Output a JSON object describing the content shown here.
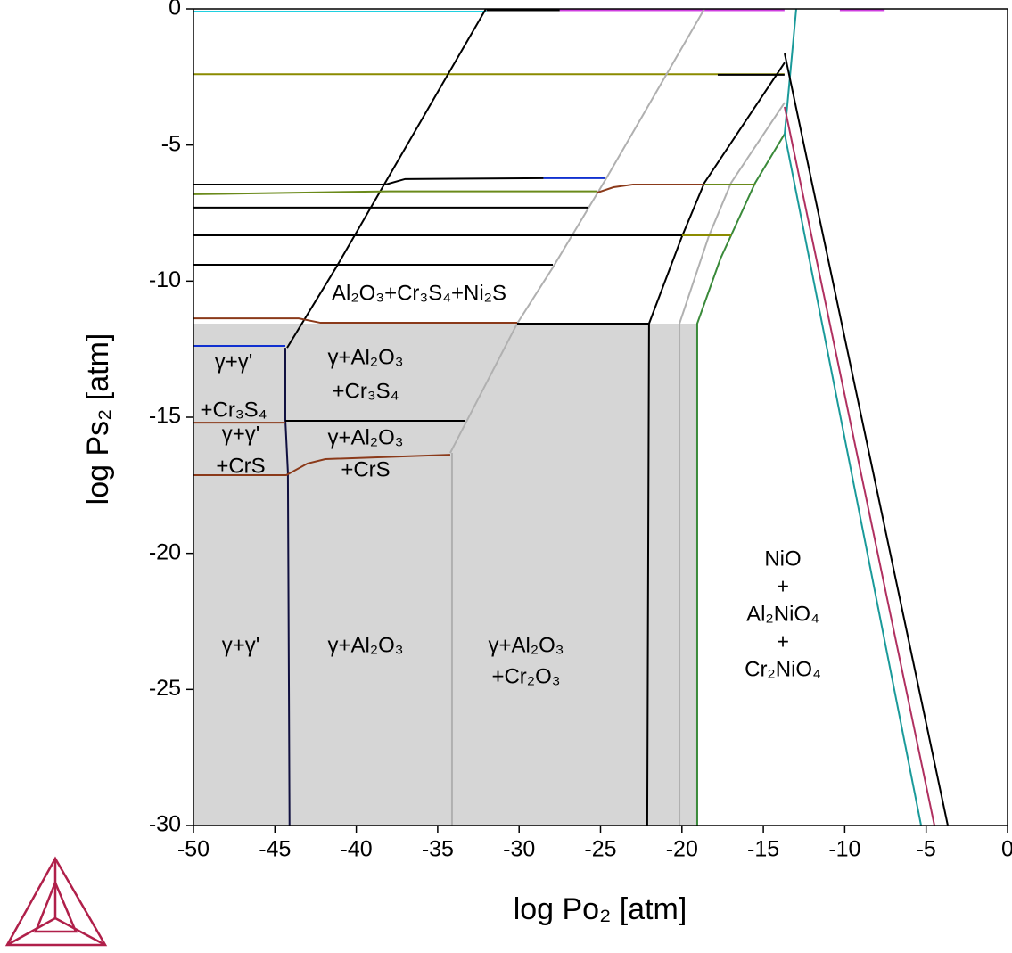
{
  "chart_data": {
    "type": "phase-diagram",
    "xlabel": "log Po₂ [atm]",
    "ylabel": "log Ps₂ [atm]",
    "xlim": [
      -50,
      0
    ],
    "ylim": [
      -30,
      0
    ],
    "xticks": [
      -50,
      -45,
      -40,
      -35,
      -30,
      -25,
      -20,
      -15,
      -10,
      -5,
      0
    ],
    "yticks": [
      -30,
      -25,
      -20,
      -15,
      -10,
      -5,
      0
    ],
    "regions": [
      {
        "color": "#d6d6d6",
        "x": [
          -50,
          -19.06,
          -19.06,
          -50
        ],
        "y": [
          -11.56,
          -11.56,
          -30,
          -30
        ]
      }
    ],
    "lines": [
      {
        "color": "#20d0e0",
        "x": [
          -50,
          -32.0
        ],
        "y": [
          -0.1,
          -0.1
        ]
      },
      {
        "color": "#000000",
        "x": [
          -32.0,
          -27.5
        ],
        "y": [
          -0.05,
          -0.05
        ]
      },
      {
        "color": "#d040e0",
        "x": [
          -27.5,
          -13.7
        ],
        "y": [
          -0.05,
          -0.05
        ]
      },
      {
        "color": "#d040e0",
        "x": [
          -10.3,
          -7.55
        ],
        "y": [
          -0.05,
          -0.05
        ]
      },
      {
        "color": "#8b8b00",
        "x": [
          -50,
          -13.7
        ],
        "y": [
          -2.4,
          -2.4
        ]
      },
      {
        "color": "#000000",
        "x": [
          -17.8,
          -13.7
        ],
        "y": [
          -2.42,
          -2.42
        ]
      },
      {
        "color": "#000000",
        "x": [
          -32.04,
          -38.23,
          -41.24,
          -44.25
        ],
        "y": [
          0,
          -6.39,
          -9.5,
          -12.45
        ]
      },
      {
        "color": "#101040",
        "x": [
          -44.36,
          -44.36,
          -44.2,
          -44.1
        ],
        "y": [
          -12.45,
          -15.07,
          -17.03,
          -30
        ]
      },
      {
        "color": "#b0b0b0",
        "x": [
          -18.62,
          -24.64,
          -27.93,
          -30.12,
          -34.23
        ],
        "y": [
          0,
          -6.22,
          -9.5,
          -11.56,
          -16.31
        ]
      },
      {
        "color": "#b0b0b0",
        "x": [
          -34.12,
          -34.12
        ],
        "y": [
          -16.31,
          -30
        ]
      },
      {
        "color": "#000000",
        "x": [
          -13.69,
          -18.62,
          -19.99,
          -22.02,
          -22.13
        ],
        "y": [
          -1.97,
          -6.39,
          -8.35,
          -11.56,
          -30
        ]
      },
      {
        "color": "#b0b0b0",
        "x": [
          -13.69,
          -16.98,
          -18.35,
          -20.15,
          -20.15
        ],
        "y": [
          -3.44,
          -6.39,
          -8.35,
          -11.56,
          -30
        ]
      },
      {
        "color": "#3a8a3a",
        "x": [
          -13.69,
          -15.5,
          -17.63,
          -19.06,
          -19.06
        ],
        "y": [
          -4.59,
          -6.39,
          -9.17,
          -11.56,
          -30
        ]
      },
      {
        "color": "#1a9a9a",
        "x": [
          -12.98,
          -13.69,
          -5.31
        ],
        "y": [
          0,
          -4.59,
          -30
        ]
      },
      {
        "color": "#b03060",
        "x": [
          -13.69,
          -4.49
        ],
        "y": [
          -3.6,
          -30
        ]
      },
      {
        "color": "#000000",
        "x": [
          -13.69,
          -3.67
        ],
        "y": [
          -1.64,
          -30
        ]
      },
      {
        "color": "#000000",
        "x": [
          -50,
          -38.2,
          -37.0,
          -28.5
        ],
        "y": [
          -6.45,
          -6.45,
          -6.25,
          -6.22
        ]
      },
      {
        "color": "#1030d0",
        "x": [
          -28.5,
          -24.75
        ],
        "y": [
          -6.22,
          -6.22
        ]
      },
      {
        "color": "#000000",
        "x": [
          -50,
          -25.74
        ],
        "y": [
          -7.3,
          -7.3
        ]
      },
      {
        "color": "#000000",
        "x": [
          -50,
          -19.99
        ],
        "y": [
          -8.32,
          -8.32
        ]
      },
      {
        "color": "#8b8b00",
        "x": [
          -19.99,
          -16.98
        ],
        "y": [
          -8.32,
          -8.32
        ]
      },
      {
        "color": "#000000",
        "x": [
          -50,
          -27.93
        ],
        "y": [
          -9.4,
          -9.4
        ]
      },
      {
        "color": "#6a8a1a",
        "x": [
          -50,
          -38.0,
          -25.2
        ],
        "y": [
          -6.81,
          -6.7,
          -6.7
        ]
      },
      {
        "color": "#8b3a1a",
        "x": [
          -25.2,
          -24.2,
          -23.0,
          -18.62
        ],
        "y": [
          -6.75,
          -6.55,
          -6.45,
          -6.45
        ]
      },
      {
        "color": "#6a8a1a",
        "x": [
          -18.62,
          -15.5
        ],
        "y": [
          -6.45,
          -6.45
        ]
      },
      {
        "color": "#8b3a1a",
        "x": [
          -50,
          -43.54,
          -42.2,
          -30.12
        ],
        "y": [
          -11.37,
          -11.37,
          -11.53,
          -11.53
        ]
      },
      {
        "color": "#000000",
        "x": [
          -30.12,
          -22.02
        ],
        "y": [
          -11.56,
          -11.56
        ]
      },
      {
        "color": "#1030d0",
        "x": [
          -50,
          -44.36
        ],
        "y": [
          -12.38,
          -12.38
        ]
      },
      {
        "color": "#8b3a1a",
        "x": [
          -50,
          -44.36
        ],
        "y": [
          -15.2,
          -15.2
        ]
      },
      {
        "color": "#000000",
        "x": [
          -44.36,
          -33.3
        ],
        "y": [
          -15.13,
          -15.13
        ]
      },
      {
        "color": "#8b3a1a",
        "x": [
          -50,
          -44.3,
          -43.0,
          -41.9,
          -34.23
        ],
        "y": [
          -17.13,
          -17.13,
          -16.7,
          -16.54,
          -16.38
        ]
      }
    ],
    "labels": [
      {
        "lines": [
          "Al₂O₃+Cr₃S₄+Ni₂S"
        ]
      },
      {
        "lines": [
          "γ+γ'",
          "+Cr₃S₄"
        ]
      },
      {
        "lines": [
          "γ+Al₂O₃",
          "+Cr₃S₄"
        ]
      },
      {
        "lines": [
          "γ+γ'",
          "+CrS"
        ]
      },
      {
        "lines": [
          "γ+Al₂O₃",
          "+CrS"
        ]
      },
      {
        "lines": [
          "γ+γ'"
        ]
      },
      {
        "lines": [
          "γ+Al₂O₃"
        ]
      },
      {
        "lines": [
          "γ+Al₂O₃",
          "+Cr₂O₃"
        ]
      },
      {
        "lines": [
          "NiO",
          "+",
          "Al₂NiO₄",
          "+",
          "Cr₂NiO₄"
        ]
      }
    ]
  }
}
